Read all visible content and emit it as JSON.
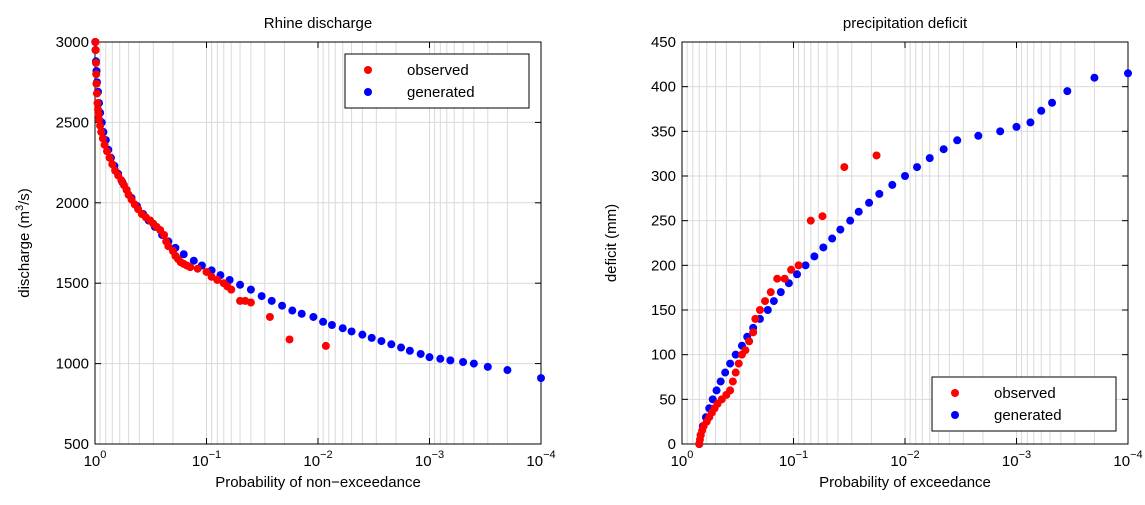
{
  "chart_data": [
    {
      "type": "scatter",
      "title": "Rhine  discharge",
      "xlabel": "Probability of non−exceedance",
      "ylabel": "discharge (m",
      "ylabel_sup": "3",
      "ylabel_end": "/s)",
      "xscale": "log-reversed",
      "xlim": [
        1,
        0.0001
      ],
      "ylim": [
        500,
        3000
      ],
      "yticks": [
        500,
        1000,
        1500,
        2000,
        2500,
        3000
      ],
      "xticks": [
        {
          "value": 1,
          "base": "10",
          "exp": "0"
        },
        {
          "value": 0.1,
          "base": "10",
          "exp": "−1"
        },
        {
          "value": 0.01,
          "base": "10",
          "exp": "−2"
        },
        {
          "value": 0.001,
          "base": "10",
          "exp": "−3"
        },
        {
          "value": 0.0001,
          "base": "10",
          "exp": "−4"
        }
      ],
      "grid": true,
      "legend_position": "top-right",
      "series": [
        {
          "name": "observed",
          "color": "#ff0000",
          "points": [
            [
              0.99,
              3000
            ],
            [
              0.985,
              2950
            ],
            [
              0.98,
              2870
            ],
            [
              0.975,
              2800
            ],
            [
              0.97,
              2740
            ],
            [
              0.96,
              2680
            ],
            [
              0.95,
              2620
            ],
            [
              0.94,
              2580
            ],
            [
              0.93,
              2550
            ],
            [
              0.92,
              2520
            ],
            [
              0.9,
              2480
            ],
            [
              0.88,
              2440
            ],
            [
              0.85,
              2400
            ],
            [
              0.82,
              2360
            ],
            [
              0.78,
              2320
            ],
            [
              0.74,
              2280
            ],
            [
              0.7,
              2240
            ],
            [
              0.66,
              2200
            ],
            [
              0.62,
              2170
            ],
            [
              0.58,
              2140
            ],
            [
              0.55,
              2110
            ],
            [
              0.52,
              2080
            ],
            [
              0.5,
              2050
            ],
            [
              0.47,
              2020
            ],
            [
              0.44,
              1990
            ],
            [
              0.41,
              1960
            ],
            [
              0.38,
              1930
            ],
            [
              0.35,
              1910
            ],
            [
              0.32,
              1890
            ],
            [
              0.3,
              1870
            ],
            [
              0.28,
              1850
            ],
            [
              0.26,
              1830
            ],
            [
              0.24,
              1800
            ],
            [
              0.23,
              1760
            ],
            [
              0.22,
              1730
            ],
            [
              0.2,
              1700
            ],
            [
              0.19,
              1670
            ],
            [
              0.18,
              1650
            ],
            [
              0.17,
              1630
            ],
            [
              0.16,
              1620
            ],
            [
              0.15,
              1610
            ],
            [
              0.14,
              1600
            ],
            [
              0.12,
              1590
            ],
            [
              0.1,
              1570
            ],
            [
              0.09,
              1540
            ],
            [
              0.08,
              1520
            ],
            [
              0.07,
              1500
            ],
            [
              0.065,
              1480
            ],
            [
              0.06,
              1460
            ],
            [
              0.05,
              1390
            ],
            [
              0.045,
              1390
            ],
            [
              0.04,
              1380
            ],
            [
              0.027,
              1290
            ],
            [
              0.018,
              1150
            ],
            [
              0.0085,
              1110
            ]
          ]
        },
        {
          "name": "generated",
          "color": "#0000ff",
          "points": [
            [
              0.995,
              3000
            ],
            [
              0.99,
              2950
            ],
            [
              0.98,
              2880
            ],
            [
              0.97,
              2820
            ],
            [
              0.96,
              2750
            ],
            [
              0.94,
              2690
            ],
            [
              0.92,
              2620
            ],
            [
              0.9,
              2560
            ],
            [
              0.87,
              2500
            ],
            [
              0.84,
              2440
            ],
            [
              0.8,
              2390
            ],
            [
              0.76,
              2330
            ],
            [
              0.72,
              2280
            ],
            [
              0.67,
              2230
            ],
            [
              0.62,
              2180
            ],
            [
              0.57,
              2130
            ],
            [
              0.52,
              2080
            ],
            [
              0.47,
              2030
            ],
            [
              0.42,
              1980
            ],
            [
              0.37,
              1930
            ],
            [
              0.33,
              1890
            ],
            [
              0.29,
              1850
            ],
            [
              0.25,
              1800
            ],
            [
              0.22,
              1760
            ],
            [
              0.19,
              1720
            ],
            [
              0.16,
              1680
            ],
            [
              0.13,
              1640
            ],
            [
              0.11,
              1610
            ],
            [
              0.09,
              1580
            ],
            [
              0.075,
              1550
            ],
            [
              0.062,
              1520
            ],
            [
              0.05,
              1490
            ],
            [
              0.04,
              1460
            ],
            [
              0.032,
              1420
            ],
            [
              0.026,
              1390
            ],
            [
              0.021,
              1360
            ],
            [
              0.017,
              1330
            ],
            [
              0.014,
              1310
            ],
            [
              0.011,
              1290
            ],
            [
              0.009,
              1260
            ],
            [
              0.0075,
              1240
            ],
            [
              0.006,
              1220
            ],
            [
              0.005,
              1200
            ],
            [
              0.004,
              1180
            ],
            [
              0.0033,
              1160
            ],
            [
              0.0027,
              1140
            ],
            [
              0.0022,
              1120
            ],
            [
              0.0018,
              1100
            ],
            [
              0.0015,
              1080
            ],
            [
              0.0012,
              1060
            ],
            [
              0.001,
              1040
            ],
            [
              0.0008,
              1030
            ],
            [
              0.00065,
              1020
            ],
            [
              0.0005,
              1010
            ],
            [
              0.0004,
              1000
            ],
            [
              0.0003,
              980
            ],
            [
              0.0002,
              960
            ],
            [
              0.0001,
              910
            ]
          ]
        }
      ]
    },
    {
      "type": "scatter",
      "title": "precipitation deficit",
      "xlabel": "Probability of exceedance",
      "ylabel": "deficit (mm)",
      "xscale": "log-reversed",
      "xlim": [
        1,
        0.0001
      ],
      "ylim": [
        0,
        450
      ],
      "yticks": [
        0,
        50,
        100,
        150,
        200,
        250,
        300,
        350,
        400,
        450
      ],
      "xticks": [
        {
          "value": 1,
          "base": "10",
          "exp": "0"
        },
        {
          "value": 0.1,
          "base": "10",
          "exp": "−1"
        },
        {
          "value": 0.01,
          "base": "10",
          "exp": "−2"
        },
        {
          "value": 0.001,
          "base": "10",
          "exp": "−3"
        },
        {
          "value": 0.0001,
          "base": "10",
          "exp": "−4"
        }
      ],
      "grid": true,
      "legend_position": "bottom-right",
      "series": [
        {
          "name": "observed",
          "color": "#ff0000",
          "points": [
            [
              0.7,
              0
            ],
            [
              0.69,
              5
            ],
            [
              0.68,
              10
            ],
            [
              0.66,
              15
            ],
            [
              0.64,
              20
            ],
            [
              0.6,
              25
            ],
            [
              0.57,
              30
            ],
            [
              0.54,
              35
            ],
            [
              0.51,
              40
            ],
            [
              0.48,
              45
            ],
            [
              0.44,
              50
            ],
            [
              0.4,
              55
            ],
            [
              0.37,
              60
            ],
            [
              0.35,
              70
            ],
            [
              0.33,
              80
            ],
            [
              0.31,
              90
            ],
            [
              0.29,
              100
            ],
            [
              0.27,
              105
            ],
            [
              0.25,
              115
            ],
            [
              0.23,
              125
            ],
            [
              0.22,
              140
            ],
            [
              0.2,
              150
            ],
            [
              0.18,
              160
            ],
            [
              0.16,
              170
            ],
            [
              0.14,
              185
            ],
            [
              0.12,
              185
            ],
            [
              0.105,
              195
            ],
            [
              0.09,
              200
            ],
            [
              0.07,
              250
            ],
            [
              0.055,
              255
            ],
            [
              0.035,
              310
            ],
            [
              0.018,
              323
            ]
          ]
        },
        {
          "name": "generated",
          "color": "#0000ff",
          "points": [
            [
              0.7,
              0
            ],
            [
              0.68,
              10
            ],
            [
              0.65,
              20
            ],
            [
              0.61,
              30
            ],
            [
              0.57,
              40
            ],
            [
              0.53,
              50
            ],
            [
              0.49,
              60
            ],
            [
              0.45,
              70
            ],
            [
              0.41,
              80
            ],
            [
              0.37,
              90
            ],
            [
              0.33,
              100
            ],
            [
              0.29,
              110
            ],
            [
              0.26,
              120
            ],
            [
              0.23,
              130
            ],
            [
              0.2,
              140
            ],
            [
              0.17,
              150
            ],
            [
              0.15,
              160
            ],
            [
              0.13,
              170
            ],
            [
              0.11,
              180
            ],
            [
              0.093,
              190
            ],
            [
              0.078,
              200
            ],
            [
              0.065,
              210
            ],
            [
              0.054,
              220
            ],
            [
              0.045,
              230
            ],
            [
              0.038,
              240
            ],
            [
              0.031,
              250
            ],
            [
              0.026,
              260
            ],
            [
              0.021,
              270
            ],
            [
              0.017,
              280
            ],
            [
              0.013,
              290
            ],
            [
              0.01,
              300
            ],
            [
              0.0078,
              310
            ],
            [
              0.006,
              320
            ],
            [
              0.0045,
              330
            ],
            [
              0.0034,
              340
            ],
            [
              0.0022,
              345
            ],
            [
              0.0014,
              350
            ],
            [
              0.001,
              355
            ],
            [
              0.00075,
              360
            ],
            [
              0.0006,
              373
            ],
            [
              0.00048,
              382
            ],
            [
              0.00035,
              395
            ],
            [
              0.0002,
              410
            ],
            [
              0.0001,
              415
            ]
          ]
        }
      ]
    }
  ]
}
